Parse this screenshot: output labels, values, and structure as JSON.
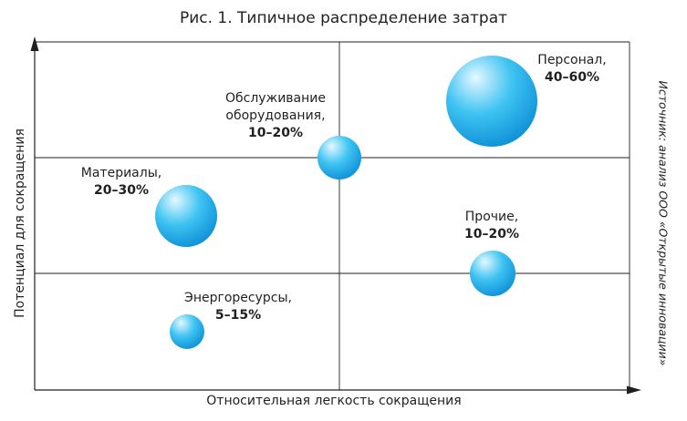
{
  "chart_data": {
    "type": "scatter",
    "title": "Рис. 1. Типичное распределение затрат",
    "xlabel": "Относительная легкость сокращения",
    "ylabel": "Потенциал для сокращения",
    "source": "Источник: анализ ООО «Открытые инновации»",
    "xlim": [
      0,
      4
    ],
    "ylim": [
      0,
      4
    ],
    "grid": {
      "x": [
        2
      ],
      "y": [
        1,
        2
      ]
    },
    "colors": {
      "bubble_light": "#e6f8ff",
      "bubble_mid": "#3ec3f2",
      "bubble_dark": "#0d8fd6",
      "axis": "#231f20"
    },
    "points": [
      {
        "name": "Персонал,",
        "value": "40–60%",
        "x": 3.0,
        "y": 2.88,
        "size": 50
      },
      {
        "name": "Обслуживание оборудования,",
        "value": "10–20%",
        "x": 2.0,
        "y": 2.0,
        "size": 24
      },
      {
        "name": "Материалы,",
        "value": "20–30%",
        "x": 1.0,
        "y": 1.5,
        "size": 34
      },
      {
        "name": "Прочие,",
        "value": "10–20%",
        "x": 2.0,
        "y": 1.0,
        "size": 25
      },
      {
        "name": "Энергоресурсы,",
        "value": "5–15%",
        "x": 1.0,
        "y": 0.5,
        "size": 19
      }
    ]
  }
}
